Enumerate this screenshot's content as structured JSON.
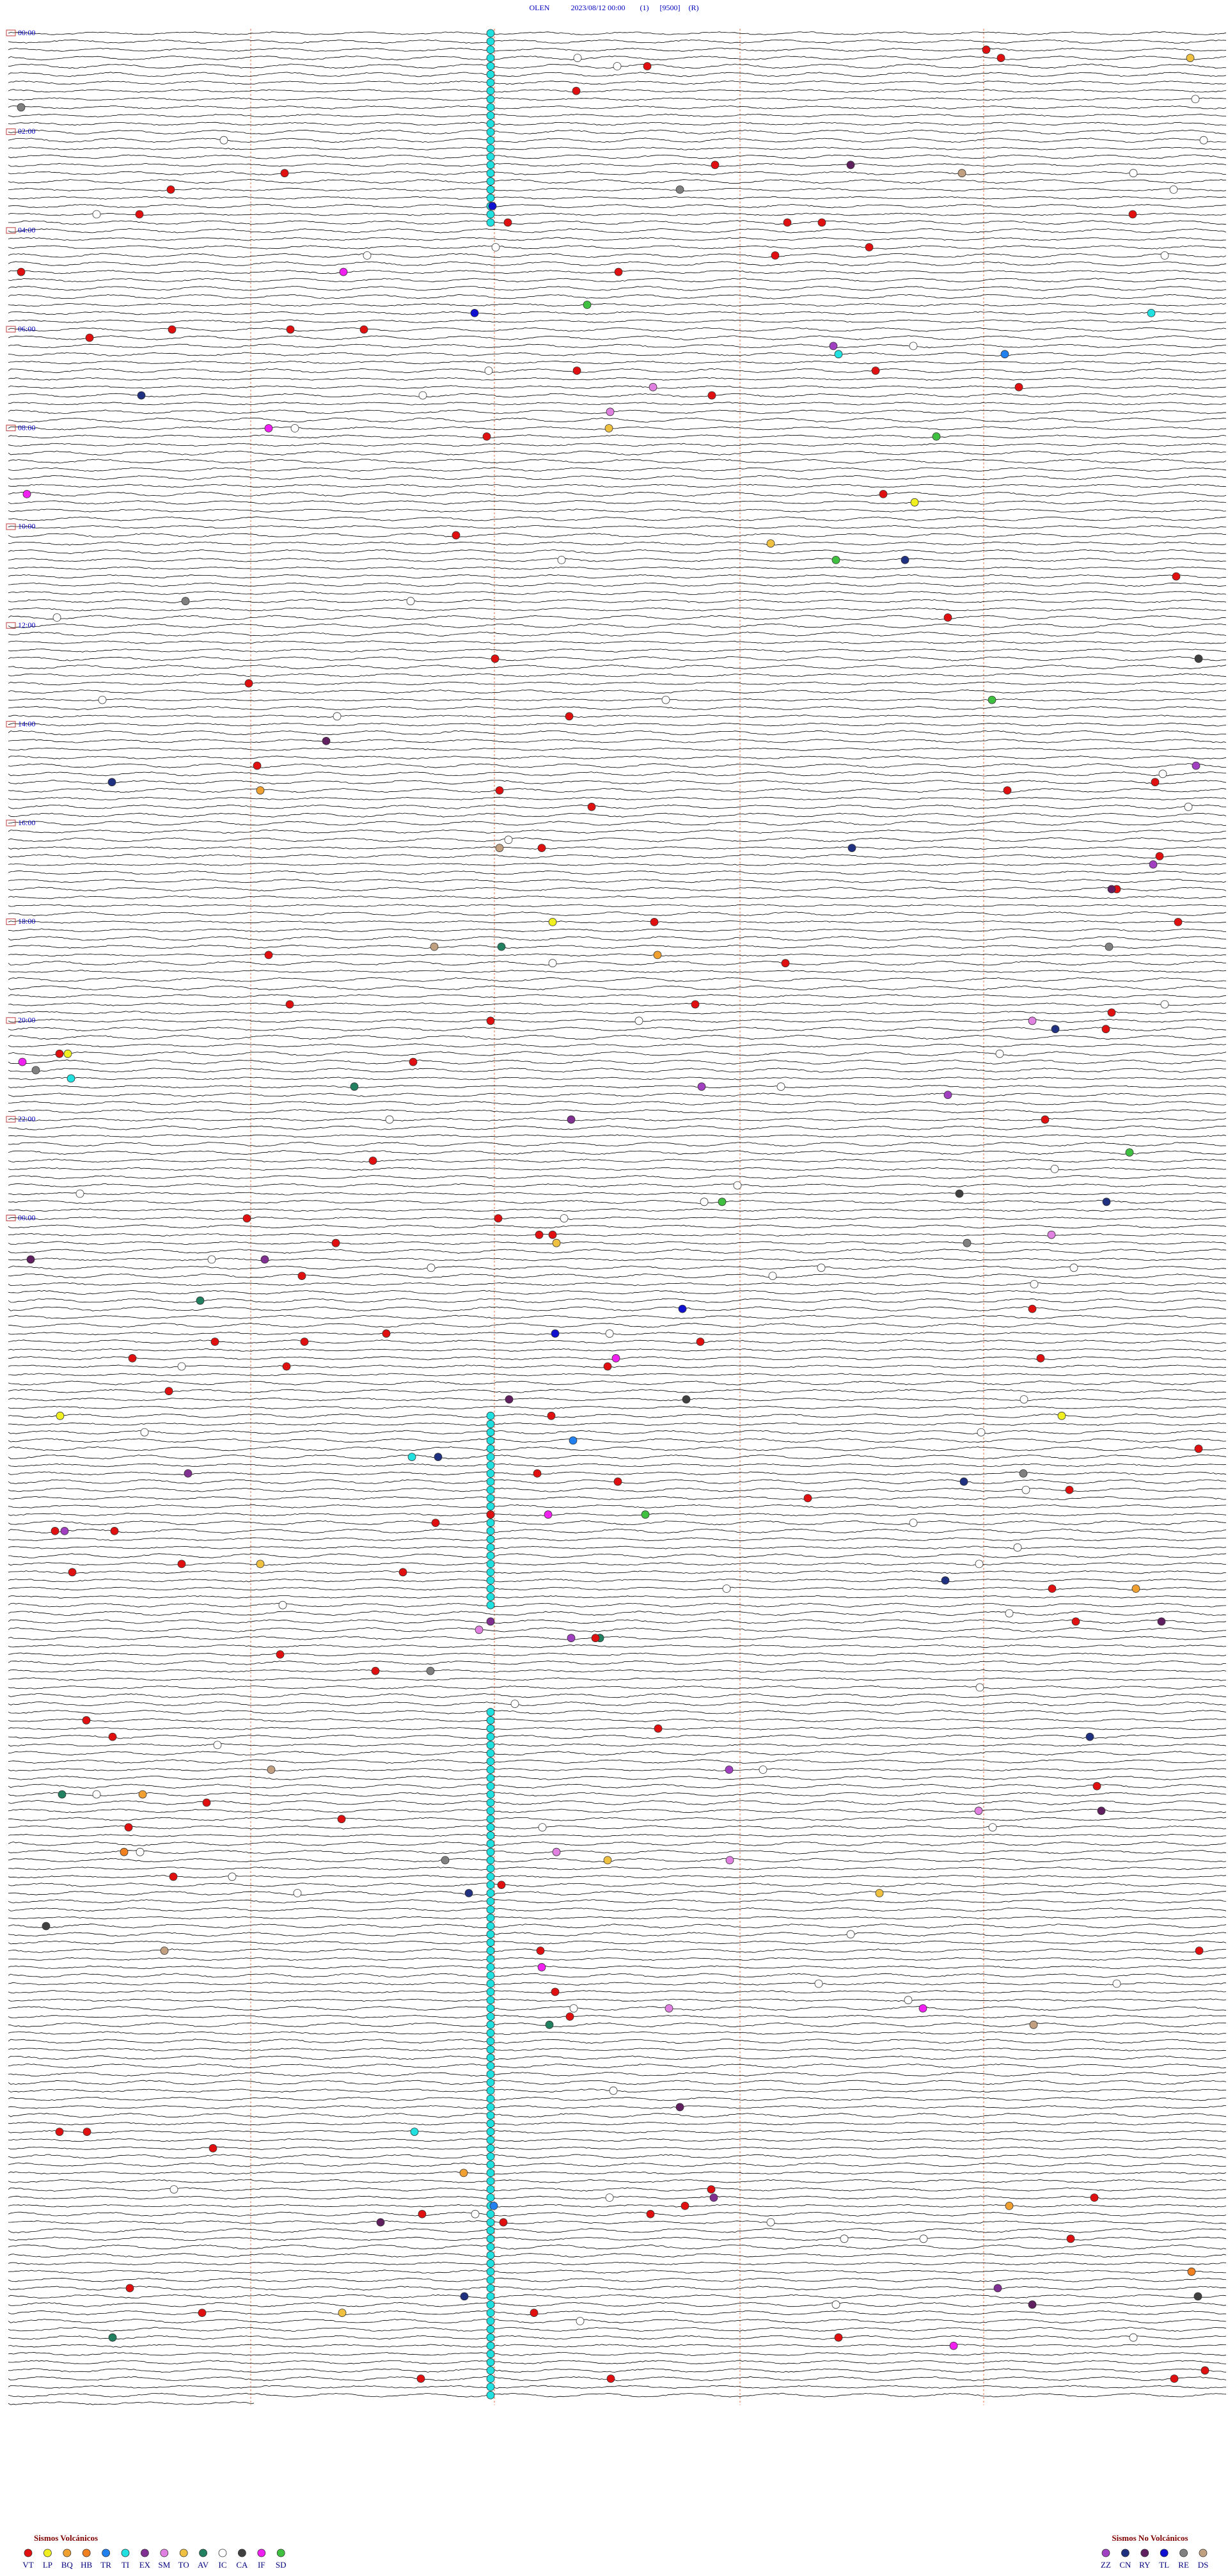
{
  "header": {
    "station": "OLEN",
    "datetime": "2023/08/12 00:00",
    "channel": "(1)",
    "gain": "[9500]",
    "mode": "(R)"
  },
  "time_labels": [
    "00:00",
    "02:00",
    "04:00",
    "06:00",
    "08:00",
    "10:00",
    "12:00",
    "14:00",
    "16:00",
    "18:00",
    "20:00",
    "22:00",
    "00:00"
  ],
  "legend": {
    "volcanic": {
      "title": "Sismos Volcánicos",
      "items": [
        {
          "code": "VT",
          "color": "#e01010"
        },
        {
          "code": "LP",
          "color": "#f0f020"
        },
        {
          "code": "BQ",
          "color": "#f0a030"
        },
        {
          "code": "HB",
          "color": "#f08020"
        },
        {
          "code": "TR",
          "color": "#2080f0"
        },
        {
          "code": "TI",
          "color": "#20e0e0"
        },
        {
          "code": "EX",
          "color": "#803090"
        },
        {
          "code": "SM",
          "color": "#e080e0"
        },
        {
          "code": "TO",
          "color": "#f0c040"
        },
        {
          "code": "AV",
          "color": "#208060"
        },
        {
          "code": "IC",
          "color": "#ffffff"
        },
        {
          "code": "CA",
          "color": "#404040"
        },
        {
          "code": "IF",
          "color": "#f020f0"
        },
        {
          "code": "SD",
          "color": "#40c040"
        }
      ]
    },
    "non_volcanic": {
      "title": "Sismos No Volcánicos",
      "items": [
        {
          "code": "ZZ",
          "color": "#a040c0"
        },
        {
          "code": "CN",
          "color": "#203080"
        },
        {
          "code": "RY",
          "color": "#602060"
        },
        {
          "code": "TL",
          "color": "#1010d0"
        },
        {
          "code": "RE",
          "color": "#808080"
        },
        {
          "code": "DS",
          "color": "#c0a080"
        }
      ]
    }
  }
}
